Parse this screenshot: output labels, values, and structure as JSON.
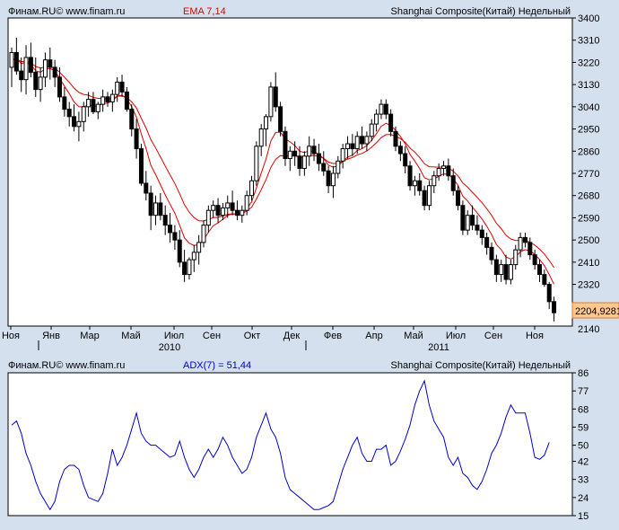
{
  "price_panel": {
    "header_left": "Финам.RU©  www.finam.ru",
    "indicator_label": "EMA 7,14",
    "header_right": "Shanghai Composite(Китай) Недельный",
    "last_price_label": "2204,9281"
  },
  "adx_panel": {
    "header_left": "Финам.RU©  www.finam.ru",
    "indicator_label": "ADX(7) = 51,44",
    "header_right": "Shanghai Composite(Китай) Недельный"
  },
  "colors": {
    "background": "#d4e0ee",
    "plot_background": "#ffffff",
    "ema_line": "#e00000",
    "adx_line": "#0000cc",
    "up_candle": "#ffffff",
    "down_candle": "#000000",
    "last_price_box": "#ffc890"
  },
  "chart_data": [
    {
      "type": "candlestick",
      "title": "Shanghai Composite(Китай) Недельный",
      "x_tick_labels": [
        "Ноя",
        "Янв",
        "Мар",
        "Май",
        "Июл",
        "Сен",
        "Окт",
        "Дек",
        "Фев",
        "Апр",
        "Май",
        "Июл",
        "Сен",
        "Ноя"
      ],
      "year_labels": [
        "2010",
        "2011"
      ],
      "y_ticks": [
        2140,
        2230,
        2320,
        2410,
        2500,
        2590,
        2680,
        2770,
        2860,
        2950,
        3040,
        3130,
        3220,
        3310,
        3400
      ],
      "ylim": [
        2140,
        3400
      ],
      "grid": false,
      "candles": [
        [
          3200,
          3280,
          3120,
          3260
        ],
        [
          3260,
          3320,
          3170,
          3185
        ],
        [
          3185,
          3240,
          3100,
          3150
        ],
        [
          3150,
          3290,
          3090,
          3240
        ],
        [
          3240,
          3300,
          3160,
          3180
        ],
        [
          3180,
          3240,
          3080,
          3110
        ],
        [
          3110,
          3200,
          3060,
          3160
        ],
        [
          3160,
          3260,
          3120,
          3230
        ],
        [
          3230,
          3280,
          3150,
          3200
        ],
        [
          3200,
          3230,
          3120,
          3160
        ],
        [
          3160,
          3200,
          3060,
          3080
        ],
        [
          3080,
          3120,
          3000,
          3030
        ],
        [
          3030,
          3060,
          2960,
          3000
        ],
        [
          3000,
          3050,
          2940,
          2960
        ],
        [
          2960,
          3020,
          2900,
          2980
        ],
        [
          2980,
          3060,
          2940,
          3040
        ],
        [
          3040,
          3100,
          3000,
          3070
        ],
        [
          3070,
          3100,
          3010,
          3020
        ],
        [
          3020,
          3060,
          2990,
          3050
        ],
        [
          3050,
          3110,
          3020,
          3080
        ],
        [
          3080,
          3100,
          3040,
          3060
        ],
        [
          3060,
          3110,
          3020,
          3090
        ],
        [
          3090,
          3160,
          3060,
          3140
        ],
        [
          3140,
          3170,
          3080,
          3100
        ],
        [
          3100,
          3120,
          3020,
          3030
        ],
        [
          3030,
          3050,
          2920,
          2950
        ],
        [
          2950,
          2990,
          2830,
          2870
        ],
        [
          2870,
          2890,
          2720,
          2730
        ],
        [
          2730,
          2780,
          2660,
          2690
        ],
        [
          2690,
          2720,
          2540,
          2600
        ],
        [
          2600,
          2680,
          2560,
          2650
        ],
        [
          2650,
          2690,
          2580,
          2600
        ],
        [
          2600,
          2640,
          2520,
          2560
        ],
        [
          2560,
          2610,
          2490,
          2530
        ],
        [
          2530,
          2560,
          2460,
          2500
        ],
        [
          2500,
          2540,
          2390,
          2410
        ],
        [
          2410,
          2460,
          2330,
          2360
        ],
        [
          2360,
          2430,
          2340,
          2420
        ],
        [
          2420,
          2480,
          2370,
          2450
        ],
        [
          2450,
          2520,
          2400,
          2490
        ],
        [
          2490,
          2580,
          2470,
          2560
        ],
        [
          2560,
          2640,
          2530,
          2620
        ],
        [
          2620,
          2660,
          2590,
          2640
        ],
        [
          2640,
          2670,
          2570,
          2600
        ],
        [
          2600,
          2650,
          2580,
          2630
        ],
        [
          2630,
          2680,
          2590,
          2650
        ],
        [
          2650,
          2700,
          2600,
          2620
        ],
        [
          2620,
          2660,
          2580,
          2600
        ],
        [
          2600,
          2640,
          2570,
          2620
        ],
        [
          2620,
          2700,
          2600,
          2680
        ],
        [
          2680,
          2760,
          2660,
          2740
        ],
        [
          2740,
          2900,
          2720,
          2880
        ],
        [
          2880,
          2970,
          2840,
          2950
        ],
        [
          2950,
          3010,
          2880,
          3000
        ],
        [
          3000,
          3140,
          2980,
          3120
        ],
        [
          3120,
          3180,
          3020,
          3040
        ],
        [
          3040,
          3060,
          2920,
          2940
        ],
        [
          2940,
          2960,
          2800,
          2830
        ],
        [
          2830,
          2880,
          2780,
          2860
        ],
        [
          2860,
          2900,
          2800,
          2840
        ],
        [
          2840,
          2880,
          2760,
          2790
        ],
        [
          2790,
          2860,
          2760,
          2840
        ],
        [
          2840,
          2920,
          2800,
          2880
        ],
        [
          2880,
          2910,
          2820,
          2850
        ],
        [
          2850,
          2890,
          2780,
          2810
        ],
        [
          2810,
          2860,
          2760,
          2780
        ],
        [
          2780,
          2800,
          2690,
          2720
        ],
        [
          2720,
          2800,
          2670,
          2770
        ],
        [
          2770,
          2840,
          2750,
          2820
        ],
        [
          2820,
          2890,
          2790,
          2870
        ],
        [
          2870,
          2920,
          2830,
          2890
        ],
        [
          2890,
          2930,
          2840,
          2870
        ],
        [
          2870,
          2940,
          2850,
          2920
        ],
        [
          2920,
          2960,
          2870,
          2890
        ],
        [
          2890,
          2940,
          2860,
          2920
        ],
        [
          2920,
          2990,
          2900,
          2970
        ],
        [
          2970,
          3030,
          2940,
          3010
        ],
        [
          3010,
          3070,
          2990,
          3050
        ],
        [
          3050,
          3070,
          2990,
          3010
        ],
        [
          3010,
          3030,
          2920,
          2940
        ],
        [
          2940,
          2960,
          2860,
          2880
        ],
        [
          2880,
          2900,
          2820,
          2850
        ],
        [
          2850,
          2880,
          2770,
          2800
        ],
        [
          2800,
          2820,
          2700,
          2720
        ],
        [
          2720,
          2760,
          2680,
          2740
        ],
        [
          2740,
          2770,
          2680,
          2700
        ],
        [
          2700,
          2720,
          2620,
          2640
        ],
        [
          2640,
          2740,
          2620,
          2720
        ],
        [
          2720,
          2780,
          2690,
          2760
        ],
        [
          2760,
          2810,
          2740,
          2790
        ],
        [
          2790,
          2820,
          2760,
          2800
        ],
        [
          2800,
          2830,
          2740,
          2760
        ],
        [
          2760,
          2790,
          2680,
          2700
        ],
        [
          2700,
          2720,
          2620,
          2640
        ],
        [
          2640,
          2660,
          2520,
          2540
        ],
        [
          2540,
          2620,
          2520,
          2600
        ],
        [
          2600,
          2640,
          2540,
          2560
        ],
        [
          2560,
          2600,
          2520,
          2540
        ],
        [
          2540,
          2560,
          2480,
          2510
        ],
        [
          2510,
          2530,
          2440,
          2470
        ],
        [
          2470,
          2490,
          2400,
          2420
        ],
        [
          2420,
          2440,
          2330,
          2360
        ],
        [
          2360,
          2420,
          2330,
          2400
        ],
        [
          2400,
          2440,
          2320,
          2340
        ],
        [
          2340,
          2420,
          2320,
          2400
        ],
        [
          2400,
          2480,
          2380,
          2460
        ],
        [
          2460,
          2530,
          2430,
          2510
        ],
        [
          2510,
          2530,
          2470,
          2490
        ],
        [
          2490,
          2510,
          2420,
          2440
        ],
        [
          2440,
          2460,
          2380,
          2400
        ],
        [
          2400,
          2420,
          2330,
          2360
        ],
        [
          2360,
          2380,
          2310,
          2320
        ],
        [
          2320,
          2330,
          2220,
          2250
        ],
        [
          2250,
          2270,
          2170,
          2205
        ]
      ],
      "ema_7": [
        3230,
        3237,
        3215,
        3221,
        3211,
        3186,
        3180,
        3193,
        3195,
        3186,
        3155,
        3124,
        3093,
        3060,
        3040,
        3040,
        3048,
        3041,
        3043,
        3053,
        3055,
        3064,
        3083,
        3087,
        3072,
        3041,
        2998,
        2931,
        2871,
        2803,
        2765,
        2724,
        2683,
        2645,
        2609,
        2559,
        2509,
        2487,
        2478,
        2481,
        2501,
        2531,
        2558,
        2569,
        2584,
        2600,
        2605,
        2604,
        2608,
        2626,
        2655,
        2711,
        2771,
        2828,
        2901,
        2936,
        2937,
        2910,
        2898,
        2883,
        2860,
        2855,
        2861,
        2859,
        2847,
        2830,
        2803,
        2795,
        2801,
        2818,
        2836,
        2844,
        2863,
        2870,
        2883,
        2904,
        2931,
        2961,
        2973,
        2965,
        2944,
        2920,
        2890,
        2847,
        2820,
        2790,
        2752,
        2744,
        2748,
        2758,
        2768,
        2766,
        2749,
        2722,
        2677,
        2658,
        2633,
        2610,
        2585,
        2556,
        2522,
        2482,
        2461,
        2431,
        2423,
        2432,
        2452,
        2461,
        2456,
        2442,
        2421,
        2396,
        2360,
        2321
      ],
      "ema_14": [
        3230,
        3234,
        3223,
        3225,
        3218,
        3203,
        3197,
        3201,
        3201,
        3196,
        3180,
        3160,
        3139,
        3116,
        3098,
        3090,
        3087,
        3078,
        3074,
        3074,
        3071,
        3073,
        3082,
        3084,
        3077,
        3060,
        3035,
        2994,
        2954,
        2907,
        2873,
        2837,
        2800,
        2764,
        2729,
        2687,
        2643,
        2613,
        2591,
        2578,
        2577,
        2583,
        2591,
        2592,
        2597,
        2604,
        2606,
        2605,
        2607,
        2617,
        2633,
        2666,
        2704,
        2744,
        2794,
        2827,
        2842,
        2840,
        2843,
        2842,
        2835,
        2836,
        2842,
        2843,
        2839,
        2831,
        2816,
        2810,
        2811,
        2819,
        2828,
        2834,
        2845,
        2851,
        2861,
        2876,
        2894,
        2915,
        2927,
        2928,
        2920,
        2911,
        2896,
        2873,
        2856,
        2835,
        2809,
        2797,
        2796,
        2795,
        2796,
        2792,
        2779,
        2760,
        2731,
        2714,
        2693,
        2673,
        2651,
        2627,
        2600,
        2568,
        2546,
        2519,
        2504,
        2498,
        2499,
        2498,
        2491,
        2479,
        2463,
        2443,
        2417,
        2388
      ]
    },
    {
      "type": "line",
      "title": "ADX(7)",
      "series": [
        {
          "name": "ADX(7)",
          "values": [
            60,
            62,
            56,
            46,
            40,
            32,
            26,
            22,
            18,
            22,
            32,
            38,
            40,
            40,
            38,
            30,
            24,
            23,
            22,
            26,
            36,
            48,
            40,
            44,
            50,
            58,
            66,
            56,
            52,
            50,
            50,
            48,
            46,
            44,
            45,
            52,
            44,
            38,
            34,
            38,
            44,
            48,
            44,
            48,
            54,
            50,
            44,
            40,
            36,
            38,
            44,
            54,
            60,
            66,
            58,
            54,
            46,
            34,
            28,
            26,
            24,
            22,
            20,
            18,
            18,
            19,
            20,
            22,
            30,
            38,
            44,
            50,
            54,
            46,
            42,
            42,
            48,
            48,
            50,
            40,
            42,
            47,
            53,
            60,
            70,
            77,
            82,
            70,
            62,
            58,
            54,
            44,
            40,
            44,
            36,
            34,
            30,
            28,
            32,
            38,
            46,
            50,
            56,
            64,
            70,
            66,
            66,
            66,
            56,
            44,
            43,
            45,
            51.44
          ]
        }
      ],
      "y_ticks": [
        15,
        24,
        33,
        42,
        50,
        59,
        68,
        77,
        86
      ],
      "ylim": [
        15,
        86
      ],
      "grid": false,
      "current_value": 51.44
    }
  ]
}
